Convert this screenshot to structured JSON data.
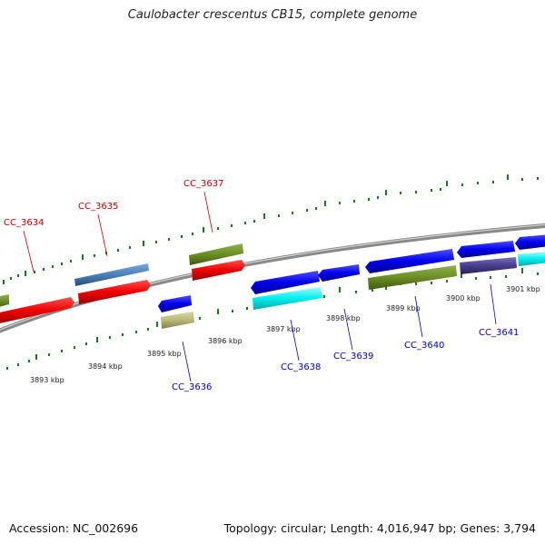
{
  "title": "Caulobacter crescentus CB15, complete genome",
  "footer": {
    "accession": "Accession: NC_002696",
    "summary": "Topology: circular; Length: 4,016,947 bp; Genes: 3,794"
  },
  "colors": {
    "forward_label": "#cc0000",
    "reverse_label": "#0000cc",
    "backbone": "#888888",
    "tick": "#1a7a1a"
  },
  "scale_labels": [
    "3893 kbp",
    "3894 kbp",
    "3895 kbp",
    "3896 kbp",
    "3897 kbp",
    "3898 kbp",
    "3899 kbp",
    "3900 kbp",
    "3901 kbp"
  ],
  "genes_forward": [
    {
      "name": "CC_3634",
      "color": "#dd0000"
    },
    {
      "name": "CC_3635",
      "color": "#dd0000"
    },
    {
      "name": "CC_3637",
      "color": "#dd0000"
    }
  ],
  "genes_reverse": [
    {
      "name": "CC_3636",
      "color": "#0000cc"
    },
    {
      "name": "CC_3638",
      "color": "#0000cc"
    },
    {
      "name": "CC_3639",
      "color": "#0000cc"
    },
    {
      "name": "CC_3640",
      "color": "#0000cc"
    },
    {
      "name": "CC_3641",
      "color": "#0000cc"
    }
  ]
}
